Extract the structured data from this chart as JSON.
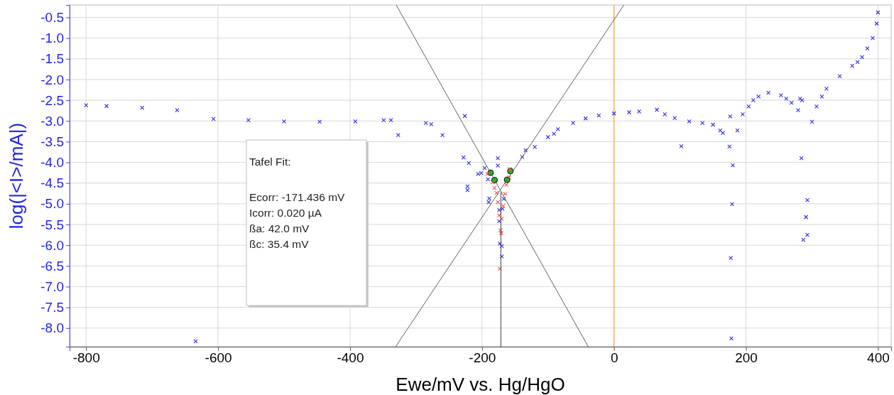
{
  "chart_data": {
    "type": "scatter",
    "xlabel": "Ewe/mV vs. Hg/HgO",
    "ylabel": "log(|<I>/mA|)",
    "xlim": [
      -825,
      420
    ],
    "ylim": [
      -8.45,
      -0.2
    ],
    "xticks": [
      -800,
      -600,
      -400,
      -200,
      0,
      200,
      400
    ],
    "yticks": [
      {
        "value": -0.5,
        "label": "-0.5"
      },
      {
        "value": -1,
        "label": "-1.0"
      },
      {
        "value": -1.5,
        "label": "-1.5"
      },
      {
        "value": -2,
        "label": "-2.0"
      },
      {
        "value": -2.5,
        "label": "-2.5"
      },
      {
        "value": -3,
        "label": "-3.0"
      },
      {
        "value": -3.5,
        "label": "-3.5"
      },
      {
        "value": -4,
        "label": "-4.0"
      },
      {
        "value": -4.5,
        "label": "-4.5"
      },
      {
        "value": -5,
        "label": "-5.0"
      },
      {
        "value": -5.5,
        "label": "-5.5"
      },
      {
        "value": -6,
        "label": "-6.0"
      },
      {
        "value": -6.5,
        "label": "-6.5"
      },
      {
        "value": -7,
        "label": "-7.0"
      },
      {
        "value": -7.5,
        "label": "-7.5"
      },
      {
        "value": -8,
        "label": "-8.0"
      }
    ],
    "grid": true,
    "series": [
      {
        "marker": "cross",
        "color": "#3030f0",
        "x": [
          -769,
          -662,
          -554,
          -446,
          -338,
          -139,
          -120,
          -100,
          -62,
          -23,
          23,
          77,
          134,
          161,
          195,
          211,
          261,
          315,
          342,
          369,
          384,
          -800,
          -715,
          -607,
          -500,
          -392,
          -349,
          -285,
          -277,
          -260,
          -228,
          -220,
          -206,
          -201,
          -196,
          -134,
          -91,
          -85,
          -43,
          0,
          38,
          65,
          92,
          114,
          150,
          165,
          175,
          187,
          204,
          219,
          234,
          253,
          269,
          279,
          300,
          307,
          322,
          361,
          376,
          392,
          398,
          400,
          -634,
          -327,
          -226,
          -222,
          -222,
          176,
          180,
          179,
          177,
          178,
          284,
          293,
          291,
          293,
          287,
          102,
          282,
          285,
          -176,
          -176,
          -191,
          -189,
          -190,
          -174,
          -174,
          -173,
          -170,
          -170,
          -169,
          -167
        ],
        "values": [
          -2.64,
          -2.74,
          -2.98,
          -3.02,
          -2.98,
          -3.87,
          -3.63,
          -3.39,
          -3.05,
          -2.87,
          -2.79,
          -2.84,
          -3.05,
          -3.23,
          -2.84,
          -2.5,
          -2.46,
          -2.41,
          -1.92,
          -1.58,
          -1.25,
          -2.62,
          -2.68,
          -2.95,
          -3.01,
          -3.01,
          -2.98,
          -3.05,
          -3.08,
          -3.34,
          -3.88,
          -4.02,
          -4.28,
          -4.26,
          -4.14,
          -3.71,
          -3.31,
          -3.2,
          -2.94,
          -2.82,
          -2.77,
          -2.73,
          -2.93,
          -3.01,
          -3.09,
          -3.29,
          -3.62,
          -3.23,
          -2.65,
          -2.41,
          -2.32,
          -2.38,
          -2.56,
          -2.74,
          -3.02,
          -2.65,
          -2.22,
          -1.67,
          -1.46,
          -1.0,
          -0.65,
          -0.38,
          -8.32,
          -3.34,
          -2.88,
          -4.58,
          -4.67,
          -2.89,
          -4.07,
          -5.01,
          -6.31,
          -8.25,
          -3.9,
          -4.91,
          -5.32,
          -5.75,
          -5.87,
          -3.61,
          -2.46,
          -2.5,
          -3.9,
          -4.08,
          -4.41,
          -4.87,
          -4.96,
          -5.15,
          -5.42,
          -5.96,
          -6.02,
          -6.27,
          -5.12,
          -4.88
        ]
      },
      {
        "marker": "circle",
        "color": "#22bb22",
        "x": [
          -187,
          -181,
          -162,
          -157
        ],
        "values": [
          -4.25,
          -4.43,
          -4.42,
          -4.21
        ]
      },
      {
        "marker": "cross",
        "color": "#ff5050",
        "x": [
          -192,
          -184,
          -181,
          -178,
          -176,
          -174,
          -172,
          -171,
          -173,
          -170,
          -168,
          -165,
          -163,
          -159,
          -158
        ],
        "values": [
          -4.28,
          -4.48,
          -4.62,
          -4.74,
          -4.96,
          -5.28,
          -5.64,
          -5.71,
          -6.57,
          -5.36,
          -5.05,
          -4.76,
          -4.54,
          -4.36,
          -4.16
        ]
      },
      {
        "type": "line",
        "marker": "none",
        "line_style": "solid",
        "color": "#606060",
        "x": [
          -331,
          15
        ],
        "values": [
          -8.45,
          -0.2
        ]
      },
      {
        "type": "line",
        "marker": "none",
        "line_style": "solid",
        "color": "#606060",
        "x": [
          -330,
          -39
        ],
        "values": [
          -0.2,
          -8.45
        ]
      },
      {
        "type": "line",
        "marker": "none",
        "line_style": "solid",
        "color": "#404040",
        "x": [
          -171.436,
          -171.436
        ],
        "values": [
          -4.72,
          -8.45
        ]
      }
    ],
    "ref_lines": [
      {
        "axis": "x",
        "value": 0,
        "color": "#ffa030"
      }
    ],
    "annotations": [
      "Tafel Fit:",
      "Ecorr: -171.436 mV",
      "Icorr: 0.020 µA",
      "ßa: 42.0 mV",
      "ßc: 35.4 mV"
    ]
  }
}
